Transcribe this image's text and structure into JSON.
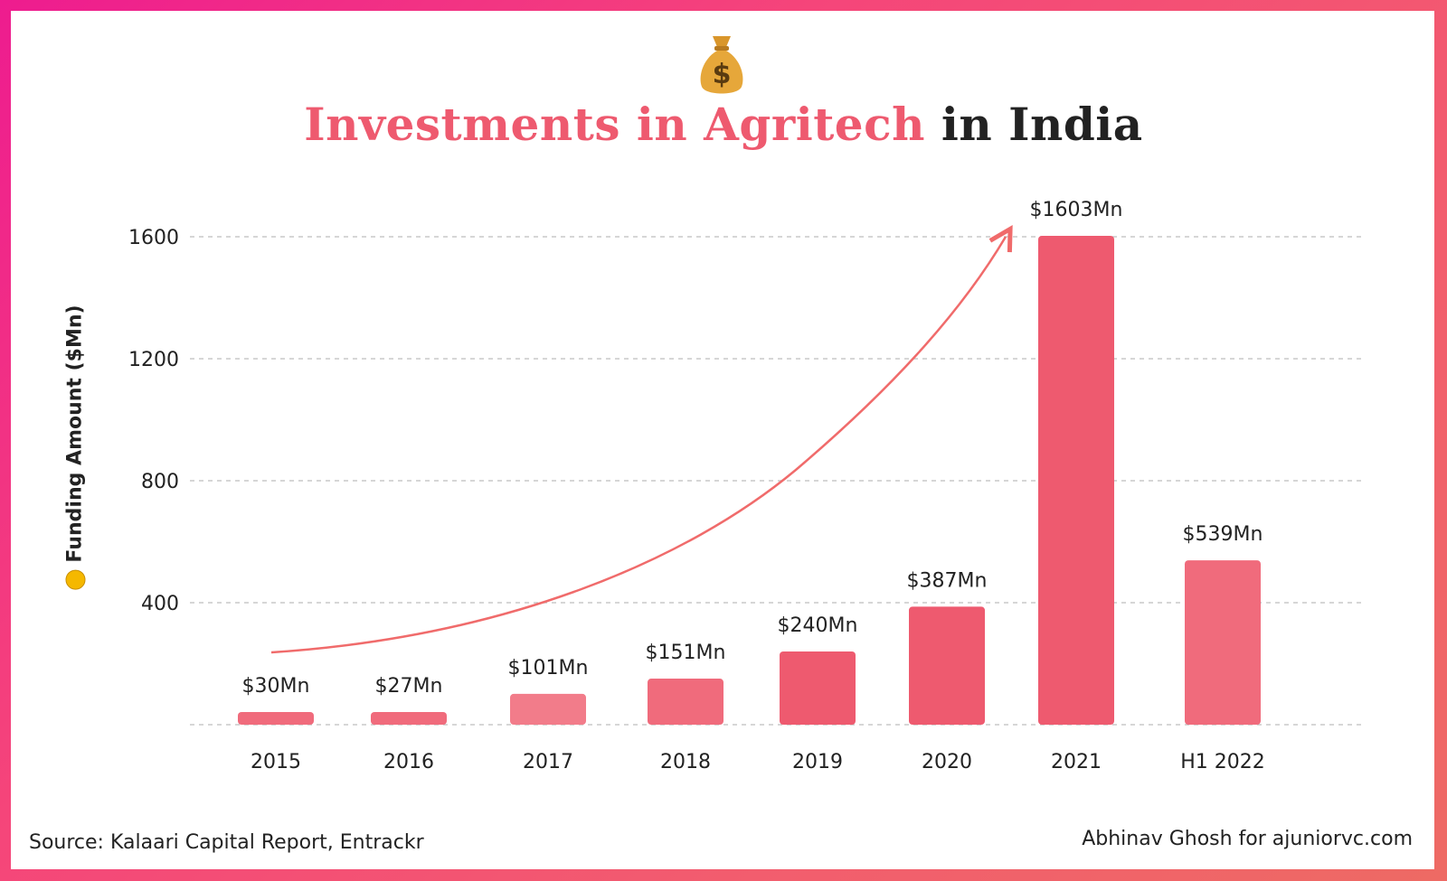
{
  "title": {
    "accent": "Investments in Agritech",
    "plain": "in India"
  },
  "icons": {
    "header": "money-bag-icon",
    "ylabel": "money-face-icon"
  },
  "colors": {
    "accent": "#ee5a6f",
    "bars": [
      "#f06b7c",
      "#f06b7c",
      "#f27c8a",
      "#f06b7c",
      "#ee5a6f",
      "#ee5a6f",
      "#ee5a6f",
      "#f06b7c"
    ],
    "trend": "#f06b6b"
  },
  "footer": {
    "source": "Source: Kalaari Capital Report, Entrackr",
    "credit": "Abhinav Ghosh for ajuniorvc.com"
  },
  "chart_data": {
    "type": "bar",
    "title": "Investments in Agritech in India",
    "xlabel": "",
    "ylabel": "Funding Amount ($Mn)",
    "categories": [
      "2015",
      "2016",
      "2017",
      "2018",
      "2019",
      "2020",
      "2021",
      "H1 2022"
    ],
    "values": [
      30,
      27,
      101,
      151,
      240,
      387,
      1603,
      539
    ],
    "data_labels": [
      "$30Mn",
      "$27Mn",
      "$101Mn",
      "$151Mn",
      "$240Mn",
      "$387Mn",
      "$1603Mn",
      "$539Mn"
    ],
    "yticks": [
      400,
      800,
      1200,
      1600
    ],
    "ytick_labels": [
      "400",
      "800",
      "1200",
      "1600"
    ],
    "ylim": [
      0,
      1650
    ],
    "grid": true,
    "annotations": [
      {
        "type": "trend-arrow",
        "from": "2015",
        "to": "2021"
      }
    ]
  }
}
